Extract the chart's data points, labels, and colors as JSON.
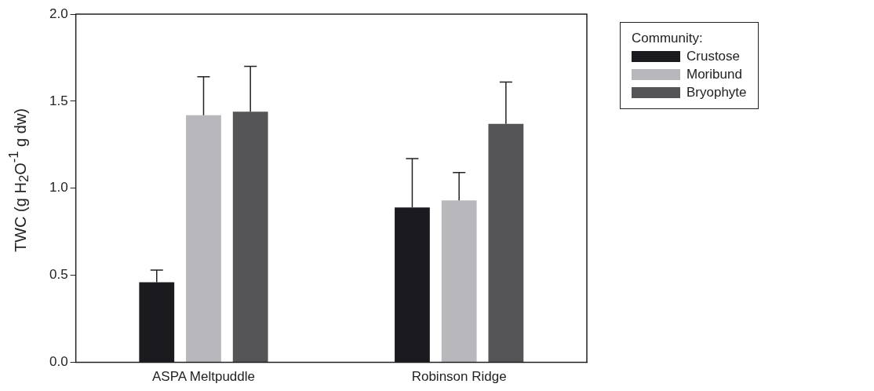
{
  "chart_data": {
    "type": "bar",
    "ylabel": "TWC (g H$_{2}$O$^{-1}$ g dw)",
    "legend_title": "Community:",
    "categories": [
      "ASPA Meltpuddle",
      "Robinson Ridge"
    ],
    "series": [
      {
        "name": "Crustose",
        "color": "#1a1a1f",
        "values": [
          0.46,
          0.89
        ],
        "errors": [
          [
            0.46,
            0.53
          ],
          [
            0.89,
            1.17
          ]
        ]
      },
      {
        "name": "Moribund",
        "color": "#b8b8bc",
        "values": [
          1.42,
          0.93
        ],
        "errors": [
          [
            1.42,
            1.64
          ],
          [
            0.93,
            1.09
          ]
        ]
      },
      {
        "name": "Bryophyte",
        "color": "#555558",
        "values": [
          1.44,
          1.37
        ],
        "errors": [
          [
            1.44,
            1.7
          ],
          [
            1.37,
            1.61
          ]
        ]
      }
    ],
    "ylim": [
      0,
      2
    ],
    "yticks": [
      {
        "value": 0,
        "label": "0.0"
      },
      {
        "value": 0.5,
        "label": "0.5"
      },
      {
        "value": 1,
        "label": "1.0"
      },
      {
        "value": 1.5,
        "label": "1.5"
      },
      {
        "value": 2,
        "label": "2.0"
      }
    ],
    "grid": false,
    "legend": "top right"
  }
}
